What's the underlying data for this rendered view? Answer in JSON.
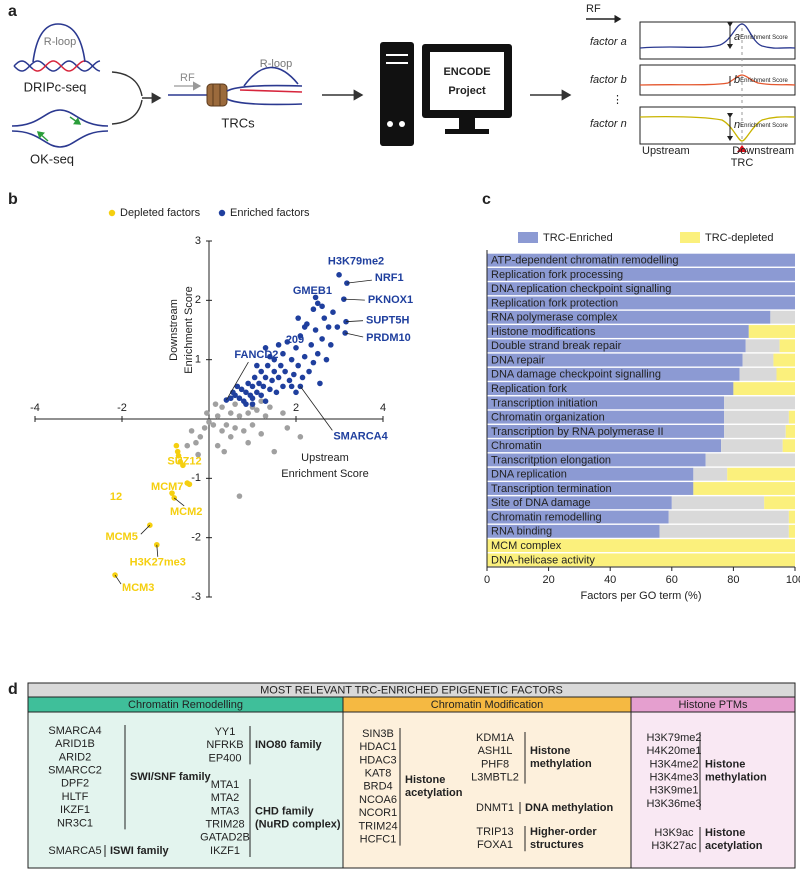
{
  "panel_labels": [
    "a",
    "b",
    "c",
    "d"
  ],
  "diagram": {
    "rloop_label": "R-loop",
    "dripc": "DRIPc-seq",
    "okseq": "OK-seq",
    "rf_label": "RF",
    "trc_rloop_label": "R-loop",
    "trcs": "TRCs",
    "encode": [
      "ENCODE",
      "Project"
    ],
    "profile_rf": "RF",
    "factors": [
      "factor a",
      "factor b",
      "factor n"
    ],
    "ellipsis": "⋮",
    "scores": [
      {
        "symbol": "a",
        "sub": "Enrichment Score"
      },
      {
        "symbol": "b",
        "sub": "Enrichment Score"
      },
      {
        "symbol": "n",
        "sub": "Enrichment Score"
      }
    ],
    "upstream": "Upstream",
    "trc": "TRC",
    "downstream": "Downstream"
  },
  "chart_data": [
    {
      "type": "scatter",
      "xlabel": [
        "Upstream",
        "Enrichment Score"
      ],
      "ylabel": [
        "Downstream",
        "Enrichment Score"
      ],
      "xlim": [
        -4,
        4
      ],
      "ylim": [
        -3,
        3
      ],
      "xticks": [
        -4,
        -2,
        2,
        4
      ],
      "yticks": [
        -3,
        -2,
        -1,
        1,
        2,
        3
      ],
      "annotations": [
        "209",
        "12"
      ],
      "series": [
        {
          "name": "Depleted factors",
          "color": "#f5cf0f",
          "x": [
            -0.75,
            -0.45,
            -0.8,
            -1.36,
            -1.2,
            -2.16,
            -0.7,
            -0.66,
            -0.6,
            -0.5,
            -0.85,
            -0.72
          ],
          "values": [
            -0.45,
            -1.1,
            -1.33,
            -1.79,
            -2.12,
            -2.63,
            -0.62,
            -0.72,
            -0.78,
            -1.08,
            -1.25,
            -0.55
          ],
          "labels": [
            "SUZ12",
            "MCM7",
            "MCM2",
            "MCM5",
            "H3K27me3",
            "MCM3",
            null,
            null,
            null,
            null,
            null,
            null
          ]
        },
        {
          "name": "Enriched factors",
          "color": "#1f3f9e",
          "x": [
            2.99,
            3.17,
            3.1,
            2.4,
            3.15,
            3.13,
            0.4,
            2.1,
            0.5,
            0.6,
            0.7,
            0.75,
            0.8,
            0.85,
            0.9,
            0.95,
            1.0,
            1.0,
            1.05,
            1.1,
            1.15,
            1.2,
            1.2,
            1.25,
            1.3,
            1.35,
            1.4,
            1.45,
            1.5,
            1.5,
            1.55,
            1.6,
            1.65,
            1.7,
            1.7,
            1.75,
            1.8,
            1.85,
            1.9,
            1.95,
            2.0,
            2.0,
            2.05,
            2.1,
            2.15,
            2.2,
            2.25,
            2.3,
            2.35,
            2.4,
            2.45,
            2.5,
            2.55,
            2.6,
            2.6,
            2.65,
            2.7,
            2.75,
            2.8,
            2.5,
            2.45,
            1.3,
            1.6,
            0.65,
            0.55,
            1.1,
            1.4,
            1.9,
            2.85,
            2.95,
            2.05,
            2.2,
            0.85,
            1.0,
            1.3
          ],
          "values": [
            2.43,
            2.29,
            2.02,
            1.85,
            1.64,
            1.45,
            0.32,
            0.55,
            0.35,
            0.4,
            0.35,
            0.5,
            0.3,
            0.45,
            0.6,
            0.4,
            0.55,
            0.35,
            0.7,
            0.45,
            0.6,
            0.8,
            0.4,
            0.55,
            0.7,
            0.9,
            0.5,
            0.65,
            0.8,
            1.0,
            0.45,
            0.7,
            0.9,
            1.1,
            0.55,
            0.8,
            1.3,
            0.65,
            1.0,
            0.75,
            1.2,
            0.45,
            0.9,
            1.4,
            0.7,
            1.05,
            1.6,
            0.8,
            1.25,
            0.95,
            1.5,
            1.1,
            0.6,
            1.35,
            1.9,
            1.7,
            1.0,
            1.55,
            1.25,
            1.95,
            2.05,
            1.2,
            1.25,
            0.55,
            0.45,
            0.9,
            1.05,
            0.55,
            1.8,
            1.55,
            1.7,
            1.55,
            0.25,
            0.25,
            0.3
          ],
          "labels": [
            "H3K79me2",
            "NRF1",
            "PKNOX1",
            "GMEB1",
            "SUPT5H",
            "PRDM10",
            "FANCD2",
            "SMARCA4",
            null,
            null,
            null,
            null,
            null,
            null,
            null,
            null,
            null,
            null,
            null,
            null,
            null,
            null,
            null,
            null,
            null,
            null,
            null,
            null,
            null,
            null,
            null,
            null,
            null,
            null,
            null,
            null,
            null,
            null,
            null,
            null,
            null,
            null,
            null,
            null,
            null,
            null,
            null,
            null,
            null,
            null,
            null,
            null,
            null,
            null,
            null,
            null,
            null,
            null,
            null,
            null,
            null,
            null,
            null,
            null,
            null,
            null,
            null,
            null,
            null,
            null,
            null,
            null,
            null,
            null,
            null
          ]
        },
        {
          "color": "#a0a0a0",
          "x": [
            0.1,
            0.2,
            0.3,
            -0.1,
            -0.2,
            -0.3,
            0.4,
            0.5,
            0.5,
            0.6,
            0.7,
            0.8,
            0.9,
            1.0,
            1.1,
            1.2,
            1.3,
            1.4,
            1.5,
            0.7,
            2.1,
            0.9,
            0.3,
            0.0,
            -0.4,
            -0.5,
            0.2,
            1.7,
            1.0,
            0.6,
            -0.05,
            0.15,
            1.8,
            0.35,
            -0.25,
            1.2
          ],
          "values": [
            -0.1,
            0.05,
            -0.2,
            -0.15,
            -0.3,
            -0.4,
            -0.1,
            0.1,
            -0.3,
            -0.15,
            0.05,
            -0.2,
            0.1,
            -0.1,
            0.15,
            -0.25,
            0.05,
            0.2,
            -0.55,
            -1.3,
            -0.3,
            -0.4,
            0.2,
            -0.05,
            -0.2,
            -0.45,
            -0.45,
            0.1,
            0.2,
            0.25,
            0.1,
            0.25,
            -0.15,
            -0.55,
            -0.6,
            0.3
          ]
        }
      ]
    },
    {
      "type": "bar",
      "orientation": "horizontal",
      "stacked": true,
      "xlabel": "Factors per GO term (%)",
      "xlim": [
        0,
        100
      ],
      "xticks": [
        0,
        20,
        40,
        60,
        80,
        100
      ],
      "categories": [
        "ATP-dependent chromatin remodelling",
        "Replication fork processing",
        "DNA replication checkpoint signalling",
        "Replication fork protection",
        "RNA polymerase complex",
        "Histone modifications",
        "Double strand break repair",
        "DNA repair",
        "DNA damage checkpoint signalling",
        "Replication fork",
        "Transcription initiation",
        "Chromatin organization",
        "Transcription by RNA polymerase II",
        "Chromatin",
        "Transcritption elongation",
        "DNA replication",
        "Transcription termination",
        "Site of DNA damage",
        "Chromatin remodelling",
        "RNA binding",
        "MCM complex",
        "DNA-helicase activity"
      ],
      "series": [
        {
          "name": "TRC-Enriched",
          "color": "#8c9ad3",
          "values": [
            100,
            100,
            100,
            100,
            92,
            85,
            84,
            83,
            82,
            80,
            77,
            77,
            77,
            76,
            71,
            67,
            67,
            60,
            59,
            56,
            0,
            0
          ]
        },
        {
          "color": "#d9d9d9",
          "values": [
            0,
            0,
            0,
            0,
            8,
            0,
            11,
            10,
            12,
            0,
            23,
            21,
            20,
            20,
            29,
            11,
            0,
            30,
            39,
            42,
            0,
            0
          ]
        },
        {
          "name": "TRC-depleted",
          "color": "#fbf07c",
          "values": [
            0,
            0,
            0,
            0,
            0,
            15,
            5,
            7,
            6,
            20,
            0,
            2,
            3,
            4,
            0,
            22,
            33,
            10,
            2,
            2,
            100,
            100
          ]
        }
      ]
    }
  ],
  "table": {
    "title": "MOST RELEVANT TRC-ENRICHED EPIGENETIC FACTORS",
    "columns": [
      {
        "header": "Chromatin Remodelling",
        "groups": [
          {
            "items": [
              "SMARCA4",
              "ARID1B",
              "ARID2",
              "SMARCC2",
              "DPF2",
              "HLTF",
              "IKZF1",
              "NR3C1"
            ],
            "label": [
              "SWI/SNF family"
            ]
          },
          {
            "items": [
              "SMARCA5"
            ],
            "label": [
              "ISWI family"
            ]
          },
          {
            "items": [
              "YY1",
              "NFRKB",
              "EP400"
            ],
            "label": [
              "INO80 family"
            ]
          },
          {
            "items": [
              "MTA1",
              "MTA2",
              "MTA3",
              "TRIM28",
              "GATAD2B",
              "IKZF1"
            ],
            "label": [
              "CHD family",
              "(NuRD complex)"
            ]
          }
        ]
      },
      {
        "header": "Chromatin Modification",
        "groups": [
          {
            "items": [
              "SIN3B",
              "HDAC1",
              "HDAC3",
              "KAT8",
              "BRD4",
              "NCOA6",
              "NCOR1",
              "TRIM24",
              "HCFC1"
            ],
            "label": [
              "Histone",
              "acetylation"
            ]
          },
          {
            "items": [
              "KDM1A",
              "ASH1L",
              "PHF8",
              "L3MBTL2"
            ],
            "label": [
              "Histone",
              "methylation"
            ]
          },
          {
            "items": [
              "DNMT1"
            ],
            "label": [
              "DNA methylation"
            ]
          },
          {
            "items": [
              "TRIP13",
              "FOXA1"
            ],
            "label": [
              "Higher-order",
              "structures"
            ]
          }
        ]
      },
      {
        "header": "Histone PTMs",
        "groups": [
          {
            "items": [
              "H3K79me2",
              "H4K20me1",
              "H3K4me2",
              "H3K4me3",
              "H3K9me1",
              "H3K36me3"
            ],
            "label": [
              "Histone",
              "methylation"
            ]
          },
          {
            "items": [
              "H3K9ac",
              "H3K27ac"
            ],
            "label": [
              "Histone",
              "acetylation"
            ]
          }
        ]
      }
    ]
  }
}
